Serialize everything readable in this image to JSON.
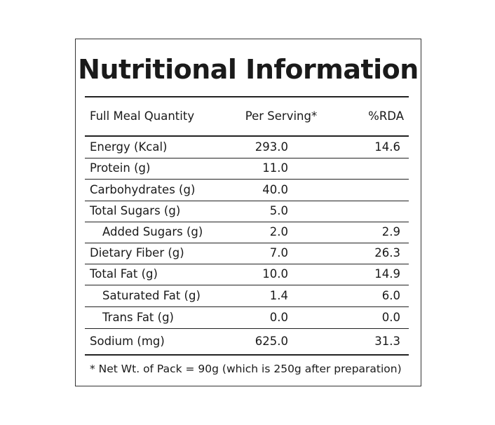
{
  "header": {
    "title": "Nutritional Information"
  },
  "table": {
    "columns": [
      "Full Meal Quantity",
      "Per Serving*",
      "%RDA"
    ],
    "rows": [
      [
        "Energy (Kcal)",
        "293.0",
        "14.6"
      ],
      [
        "Protein (g)",
        "11.0",
        null
      ],
      [
        "Carbohydrates (g)",
        "40.0",
        null
      ],
      [
        "Total Sugars (g)",
        "5.0",
        null
      ],
      [
        "Added Sugars (g)",
        "2.0",
        "2.9"
      ],
      [
        "Dietary Fiber (g)",
        "7.0",
        "26.3"
      ],
      [
        "Total Fat (g)",
        "10.0",
        "14.9"
      ],
      [
        "Saturated Fat (g)",
        "1.4",
        "6.0"
      ],
      [
        "Trans Fat (g)",
        "0.0",
        "0.0"
      ],
      [
        "Sodium (mg)",
        "625.0",
        "31.3"
      ]
    ]
  },
  "footnote": "* Net Wt. of Pack = 90g (which is 250g after preparation)"
}
